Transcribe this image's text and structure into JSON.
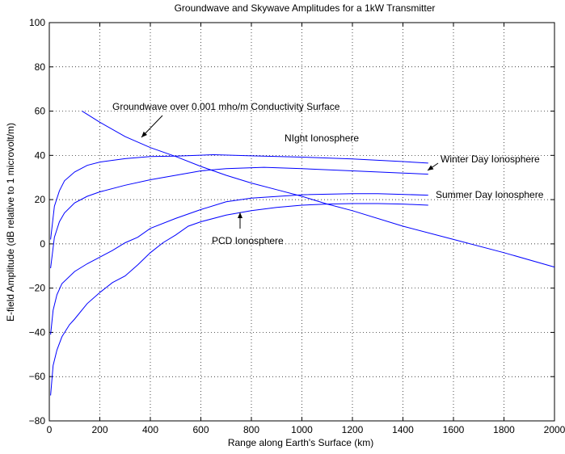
{
  "chart_data": {
    "type": "line",
    "title": "Groundwave and Skywave Amplitudes for a 1kW Transmitter",
    "xlabel": "Range along Earth's Surface (km)",
    "ylabel": "E-field Amplitude (dB relative to 1 microvolt/m)",
    "xlim": [
      0,
      2000
    ],
    "ylim": [
      -80,
      100
    ],
    "x_ticks": [
      0,
      200,
      400,
      600,
      800,
      1000,
      1200,
      1400,
      1600,
      1800,
      2000
    ],
    "y_ticks": [
      -80,
      -60,
      -40,
      -20,
      0,
      20,
      40,
      60,
      80,
      100
    ],
    "x_tick_labels": [
      "0",
      "200",
      "400",
      "600",
      "800",
      "1000",
      "1200",
      "1400",
      "1600",
      "1800",
      "2000"
    ],
    "y_tick_labels": [
      "−80",
      "−60",
      "−40",
      "−20",
      "0",
      "20",
      "40",
      "60",
      "80",
      "100"
    ],
    "grid": true,
    "line_color": "#0000ff",
    "series": [
      {
        "name": "Groundwave over 0.001 mho/m Conductivity Surface",
        "x": [
          130,
          200,
          300,
          400,
          500,
          600,
          700,
          800,
          900,
          1000,
          1100,
          1200,
          1400,
          1600,
          1800,
          2000
        ],
        "y": [
          60,
          55,
          48.5,
          43.5,
          39.5,
          35,
          31,
          27.5,
          24.5,
          21.5,
          18,
          15,
          8,
          2,
          -4,
          -10.5
        ]
      },
      {
        "name": "Night Ionosphere",
        "x": [
          5,
          20,
          40,
          60,
          100,
          150,
          200,
          300,
          400,
          500,
          650,
          800,
          1000,
          1200,
          1400,
          1500
        ],
        "y": [
          2,
          17,
          24,
          28.5,
          32.5,
          35.5,
          37,
          38.5,
          39.5,
          39.7,
          40.3,
          39.8,
          39.2,
          38.4,
          37.2,
          36.5
        ]
      },
      {
        "name": "Winter Day Ionosphere",
        "x": [
          5,
          20,
          40,
          60,
          100,
          150,
          200,
          300,
          400,
          500,
          600,
          700,
          850,
          1000,
          1200,
          1400,
          1500
        ],
        "y": [
          -11,
          3,
          10,
          14,
          18.5,
          21.5,
          23.5,
          26.5,
          29,
          31,
          33,
          34,
          34.6,
          34,
          33,
          32,
          31.5
        ]
      },
      {
        "name": "Summer Day Ionosphere",
        "x": [
          5,
          15,
          30,
          50,
          100,
          150,
          200,
          250,
          300,
          350,
          400,
          500,
          600,
          700,
          800,
          1000,
          1200,
          1300,
          1500
        ],
        "y": [
          -41,
          -30,
          -23,
          -18,
          -12.5,
          -9,
          -6,
          -3,
          0.5,
          3,
          7,
          11.5,
          15.5,
          19,
          20.7,
          22.2,
          22.7,
          22.7,
          22
        ]
      },
      {
        "name": "PCD Ionosphere",
        "x": [
          5,
          15,
          30,
          50,
          80,
          100,
          150,
          200,
          250,
          300,
          350,
          400,
          450,
          500,
          550,
          600,
          700,
          800,
          900,
          1000,
          1100,
          1200,
          1300,
          1400,
          1500
        ],
        "y": [
          -68.5,
          -55,
          -48,
          -42,
          -36.5,
          -34,
          -27,
          -22,
          -17.5,
          -14.5,
          -9.5,
          -4,
          0.5,
          4,
          8,
          10,
          13,
          15,
          16.5,
          17.5,
          18,
          18.2,
          18.2,
          18,
          17.5
        ]
      }
    ],
    "annotations": [
      {
        "text": "Groundwave over 0.001 mho/m Conductivity Surface"
      },
      {
        "text": "NIght Ionosphere"
      },
      {
        "text": "Winter Day Ionosphere"
      },
      {
        "text": "Summer Day Ionosphere"
      },
      {
        "text": "PCD Ionosphere"
      }
    ]
  }
}
